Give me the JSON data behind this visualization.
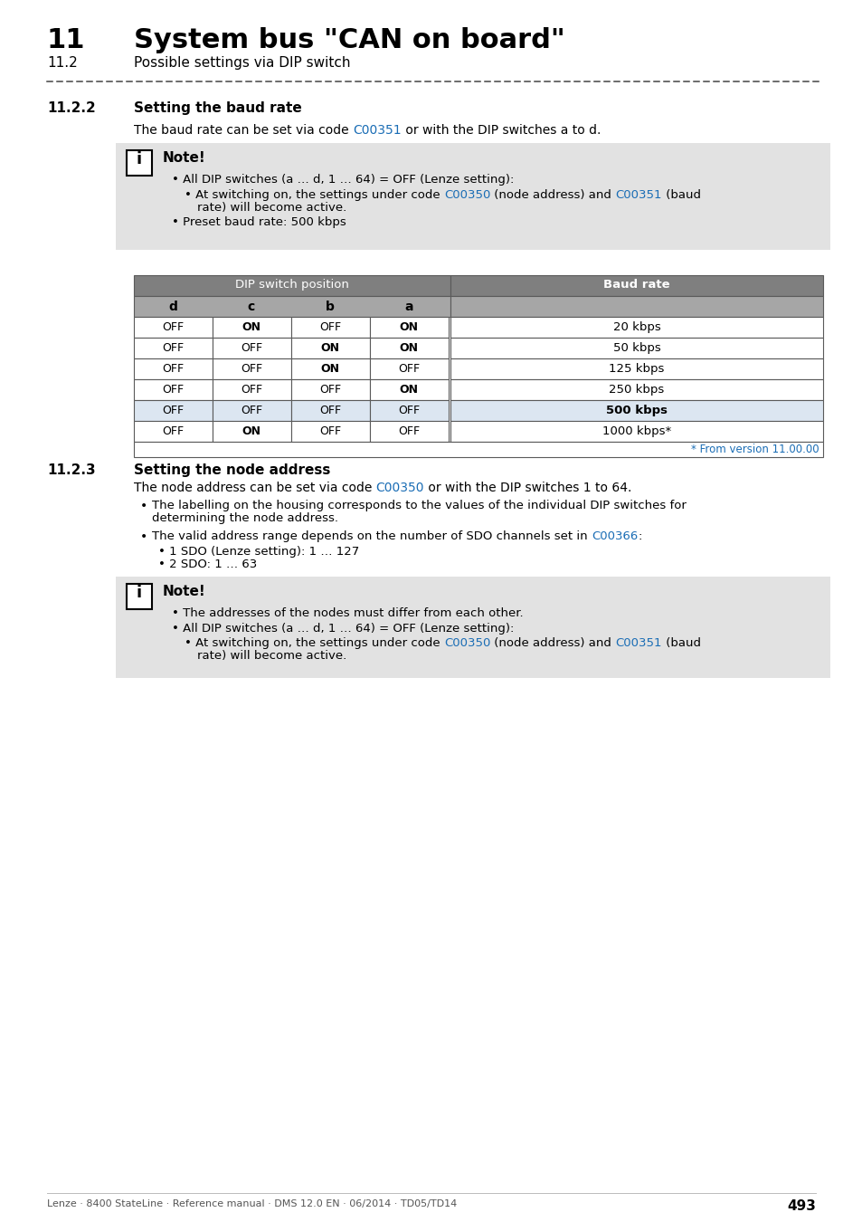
{
  "title_num": "11",
  "title_text": "System bus \"CAN on board\"",
  "subtitle_num": "11.2",
  "subtitle_text": "Possible settings via DIP switch",
  "section_222_num": "11.2.2",
  "section_222_title": "Setting the baud rate",
  "section_223_num": "11.2.3",
  "section_223_title": "Setting the node address",
  "note1_title": "Note!",
  "note2_title": "Note!",
  "table_header_left": "DIP switch position",
  "table_header_right": "Baud rate",
  "table_col_headers": [
    "d",
    "c",
    "b",
    "a"
  ],
  "table_rows": [
    [
      "OFF",
      "ON",
      "OFF",
      "ON",
      "20 kbps"
    ],
    [
      "OFF",
      "OFF",
      "ON",
      "ON",
      "50 kbps"
    ],
    [
      "OFF",
      "OFF",
      "ON",
      "OFF",
      "125 kbps"
    ],
    [
      "OFF",
      "OFF",
      "OFF",
      "ON",
      "250 kbps"
    ],
    [
      "OFF",
      "OFF",
      "OFF",
      "OFF",
      "500 kbps"
    ],
    [
      "OFF",
      "ON",
      "OFF",
      "OFF",
      "1000 kbps*"
    ]
  ],
  "table_bold_row": 4,
  "table_footnote": "* From version 11.00.00",
  "footer_text": "Lenze · 8400 StateLine · Reference manual · DMS 12.0 EN · 06/2014 · TD05/TD14",
  "footer_page": "493",
  "link_color": "#1a6db5",
  "note_bg_color": "#e2e2e2",
  "table_header_bg": "#7f7f7f",
  "table_subheader_bg": "#a6a6a6",
  "table_highlight_bg": "#dce6f1",
  "table_border_color": "#5a5a5a",
  "text_color": "#000000",
  "bg_color": "#ffffff"
}
